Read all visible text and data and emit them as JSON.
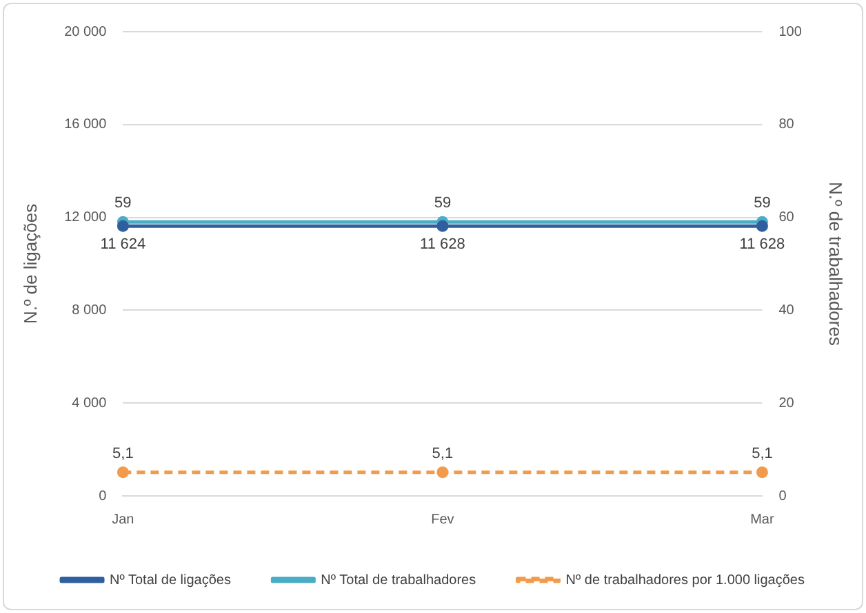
{
  "chart_data": {
    "type": "line",
    "ylabel": "N.º de ligações",
    "y2label": "N.º de trabalhadores",
    "categories": [
      "Jan",
      "Fev",
      "Mar"
    ],
    "series": [
      {
        "name": "Nº Total de ligações",
        "color": "#2f5f9e",
        "values": [
          11624,
          11628,
          11628
        ],
        "value_labels": [
          "11 624",
          "11 628",
          "11 628"
        ]
      },
      {
        "name": "Nº Total de trabalhadores",
        "color": "#4bacc6",
        "axis": "y2",
        "values": [
          59,
          59,
          59
        ],
        "value_labels": [
          "59",
          "59",
          "59"
        ]
      },
      {
        "name": "Nº de trabalhadores por 1.000 ligações",
        "color": "#f29b4c",
        "axis": "y2",
        "line_style": "dashed",
        "values": [
          5.1,
          5.1,
          5.1
        ],
        "value_labels": [
          "5,1",
          "5,1",
          "5,1"
        ]
      }
    ],
    "ylim": [
      0,
      20000
    ],
    "yticks": [
      0,
      {
        "value": 4000,
        "label": "4 000"
      },
      {
        "value": 8000,
        "label": "8 000"
      },
      {
        "value": 12000,
        "label": "12 000"
      },
      {
        "value": 16000,
        "label": "16 000"
      },
      {
        "value": 20000,
        "label": "20 000"
      }
    ],
    "y2lim": [
      0,
      100
    ],
    "y2ticks": [
      0,
      20,
      40,
      60,
      80,
      100
    ],
    "grid": "y",
    "legend": "bottom",
    "marker": "circle"
  }
}
